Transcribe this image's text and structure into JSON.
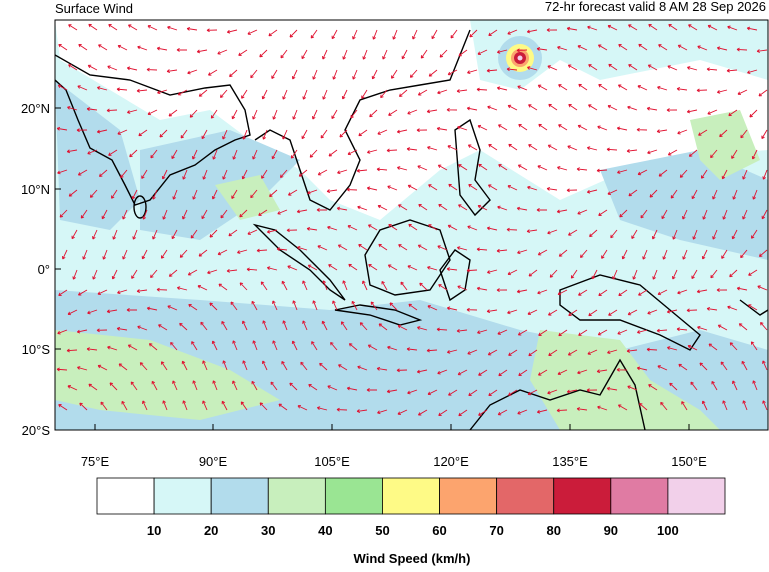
{
  "header": {
    "title": "Surface Wind",
    "subtitle": "72-hr forecast valid 8 AM 28 Sep 2026"
  },
  "map": {
    "lat_labels": [
      "20°N",
      "10°N",
      "0°",
      "10°S",
      "20°S"
    ],
    "lon_labels": [
      "75°E",
      "90°E",
      "105°E",
      "120°E",
      "135°E",
      "150°E"
    ]
  },
  "colorbar": {
    "colors": [
      "#ffffff",
      "#d6f7f7",
      "#b2dcec",
      "#c8efbd",
      "#9ae593",
      "#fefa86",
      "#fca46e",
      "#e36768",
      "#cb1c3a",
      "#e07ba3",
      "#f2d0ea"
    ],
    "labels": [
      "10",
      "20",
      "30",
      "40",
      "50",
      "60",
      "70",
      "80",
      "90",
      "100"
    ],
    "title": "Wind Speed (km/h)"
  }
}
